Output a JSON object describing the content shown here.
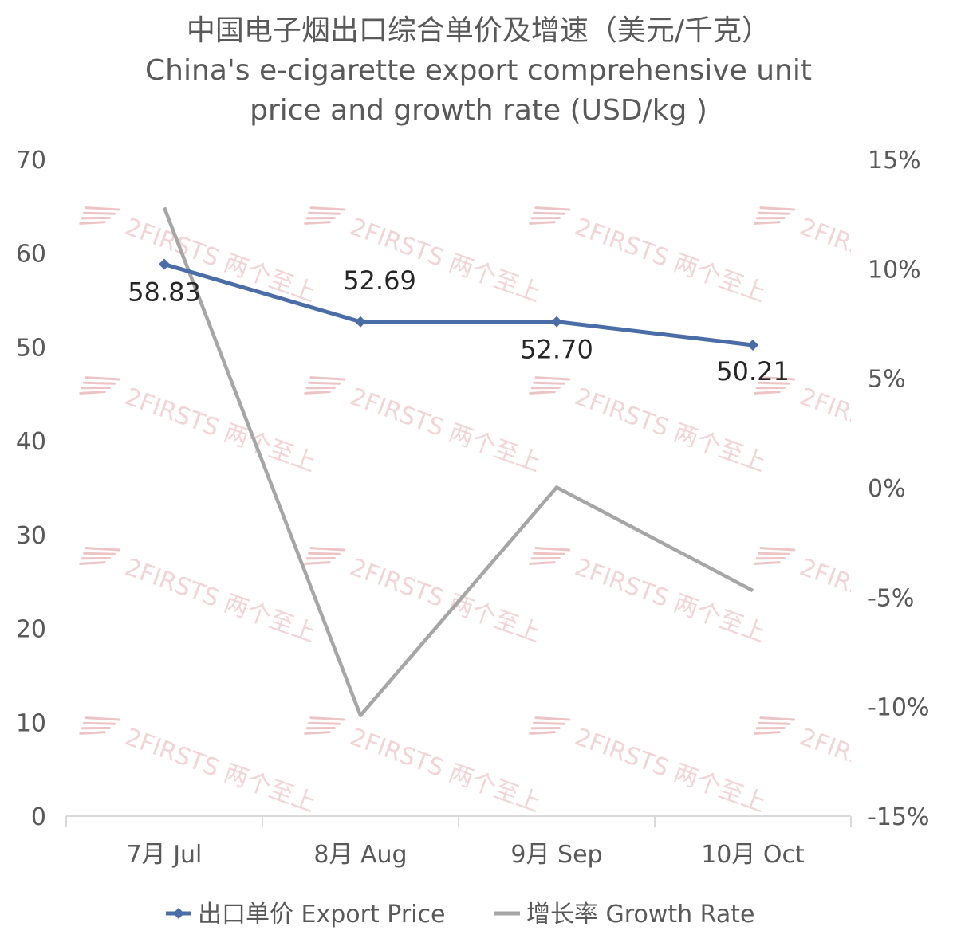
{
  "chart_data": {
    "type": "line",
    "title": [
      "中国电子烟出口综合单价及增速（美元/千克）",
      "China's e-cigarette export comprehensive unit",
      "price and growth rate (USD/kg )"
    ],
    "categories": [
      "7月 Jul",
      "8月 Aug",
      "9月 Sep",
      "10月 Oct"
    ],
    "y_left": {
      "ylim": [
        0,
        70
      ],
      "ticks": [
        0,
        10,
        20,
        30,
        40,
        50,
        60,
        70
      ]
    },
    "y_right": {
      "ylim": [
        -15,
        15
      ],
      "ticks": [
        -15,
        -10,
        -5,
        0,
        5,
        10,
        15
      ],
      "tick_labels": [
        "-15%",
        "-10%",
        "-5%",
        "0%",
        "5%",
        "10%",
        "15%"
      ]
    },
    "series": [
      {
        "name": "出口单价 Export Price",
        "axis": "left",
        "color": "#4a6da7",
        "values": [
          58.83,
          52.69,
          52.7,
          50.21
        ],
        "labels": [
          "58.83",
          "52.69",
          "52.70",
          "50.21"
        ],
        "marker": "diamond"
      },
      {
        "name": "增长率 Growth Rate",
        "axis": "right",
        "color": "#a6a6a6",
        "values": [
          12.8,
          -10.4,
          0.02,
          -4.7
        ]
      }
    ],
    "grid": false,
    "legend": "bottom",
    "watermark": "2FIRSTS 两个至上"
  }
}
